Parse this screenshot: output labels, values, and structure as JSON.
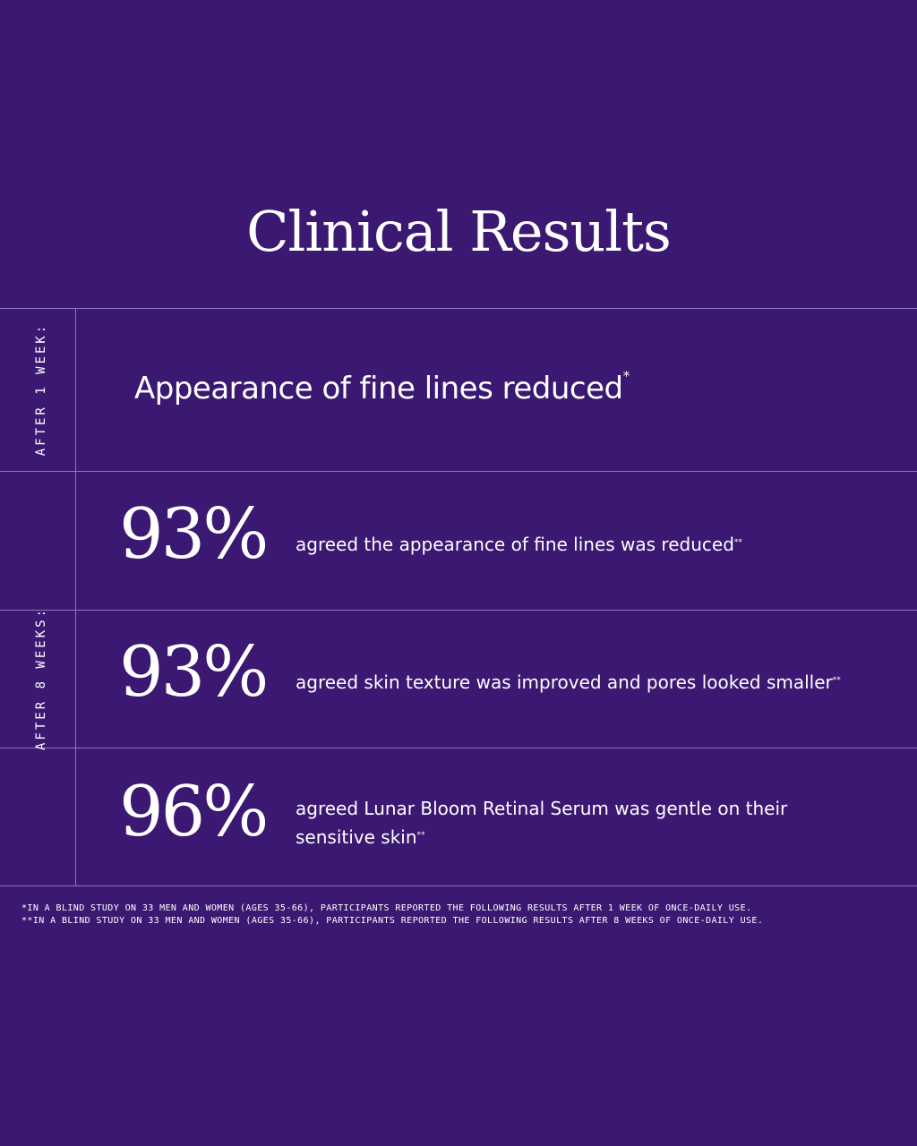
{
  "title": "Clinical Results",
  "sections": [
    {
      "label": "AFTER 1 WEEK:",
      "statement": "Appearance of fine lines reduced",
      "note_mark": "*"
    },
    {
      "label": "AFTER 8 WEEKS:",
      "results": [
        {
          "percent": "93%",
          "text": "agreed the appearance of fine lines was reduced",
          "note_mark": "**"
        },
        {
          "percent": "93%",
          "text": "agreed skin texture was improved and pores looked smaller",
          "note_mark": "**"
        },
        {
          "percent": "96%",
          "text": "agreed Lunar Bloom Retinal Serum was gentle on their sensitive skin",
          "note_mark": "**"
        }
      ]
    }
  ],
  "footnotes": [
    "*IN A BLIND STUDY ON 33 MEN AND WOMEN (AGES 35-66), PARTICIPANTS REPORTED THE FOLLOWING RESULTS AFTER 1 WEEK OF ONCE-DAILY USE.",
    "**IN A BLIND STUDY ON 33 MEN AND WOMEN (AGES 35-66), PARTICIPANTS REPORTED THE FOLLOWING RESULTS AFTER 8 WEEKS OF ONCE-DAILY USE."
  ]
}
